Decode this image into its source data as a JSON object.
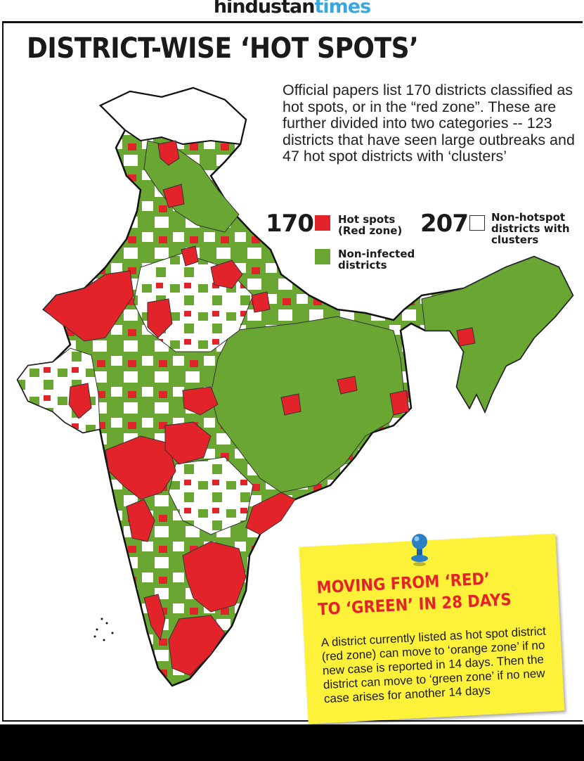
{
  "masthead": {
    "brand_part1": "hindustan",
    "brand_part2": "times"
  },
  "title": "DISTRICT-WISE ‘HOT SPOTS’",
  "intro": "Official papers list 170 districts classified as hot spots, or in the “red zone”. These are further divided into two categories -- 123 districts that have seen large outbreaks and 47 hot spot districts with ‘clusters’",
  "legend": {
    "hotspots": {
      "count": "170",
      "label_line1": "Hot spots",
      "label_line2": "(Red zone)",
      "color": "#e3232a"
    },
    "noninfected": {
      "label_line1": "Non-infected",
      "label_line2": "districts",
      "color": "#6aa632"
    },
    "clusters": {
      "count": "207",
      "label_line1": "Non-hotspot",
      "label_line2": "districts with",
      "label_line3": "clusters",
      "color": "#ffffff"
    }
  },
  "note": {
    "heading_line1": "MOVING FROM ‘RED’",
    "heading_line2": "TO ‘GREEN’ IN 28 DAYS",
    "body": "A district currently listed as hot spot district (red zone) can move to ‘orange zone’ if no new case is reported in 14 days. Then the district can move to ‘green zone’ if no new case arises for another 14 days"
  },
  "colors": {
    "red": "#e3232a",
    "green": "#6aa632",
    "white": "#ffffff",
    "note_yellow": "#fdf139",
    "pin_blue": "#2a7fc4"
  }
}
